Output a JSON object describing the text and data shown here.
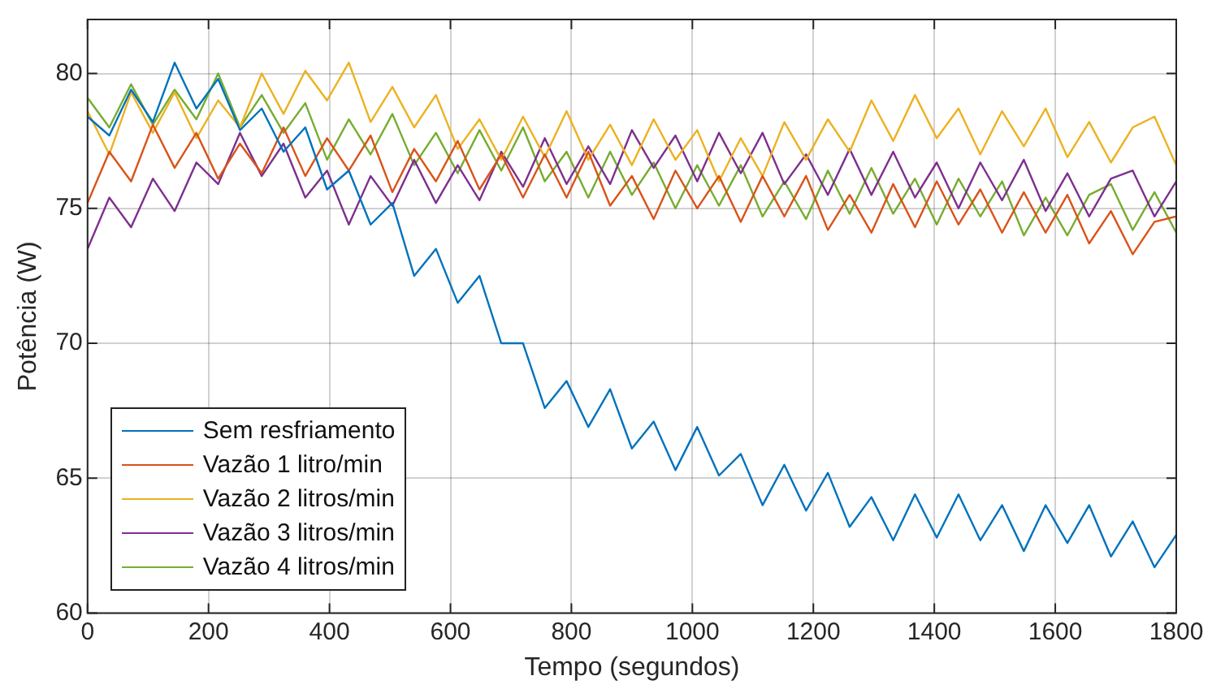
{
  "chart_data": {
    "type": "line",
    "xlabel": "Tempo (segundos)",
    "ylabel": "Potência (W)",
    "x": [
      0,
      36,
      72,
      108,
      144,
      180,
      216,
      252,
      288,
      324,
      360,
      396,
      432,
      468,
      504,
      540,
      576,
      612,
      648,
      684,
      720,
      756,
      792,
      828,
      864,
      900,
      936,
      972,
      1008,
      1044,
      1080,
      1116,
      1152,
      1188,
      1224,
      1260,
      1296,
      1332,
      1368,
      1404,
      1440,
      1476,
      1512,
      1548,
      1584,
      1620,
      1656,
      1692,
      1728,
      1764,
      1800
    ],
    "series": [
      {
        "name": "Sem resfriamento",
        "color": "#0072bd",
        "values": [
          78.4,
          77.7,
          79.4,
          78.2,
          80.4,
          78.7,
          79.8,
          77.9,
          78.7,
          77.1,
          78.0,
          75.7,
          76.4,
          74.4,
          75.2,
          72.5,
          73.5,
          71.5,
          72.5,
          70.0,
          70.0,
          67.6,
          68.6,
          66.9,
          68.3,
          66.1,
          67.1,
          65.3,
          66.9,
          65.1,
          65.9,
          64.0,
          65.5,
          63.8,
          65.2,
          63.2,
          64.3,
          62.7,
          64.4,
          62.8,
          64.4,
          62.7,
          64.0,
          62.3,
          64.0,
          62.6,
          64.0,
          62.1,
          63.4,
          61.7,
          62.9
        ]
      },
      {
        "name": "Vazão 1 litro/min",
        "color": "#d95319",
        "values": [
          75.2,
          77.1,
          76.0,
          78.1,
          76.5,
          77.8,
          76.1,
          77.4,
          76.3,
          78.0,
          76.2,
          77.6,
          76.4,
          77.7,
          75.6,
          77.2,
          76.0,
          77.5,
          75.7,
          77.0,
          75.4,
          77.0,
          75.4,
          77.1,
          75.1,
          76.2,
          74.6,
          76.4,
          75.0,
          76.2,
          74.5,
          76.2,
          74.7,
          76.2,
          74.2,
          75.5,
          74.1,
          75.9,
          74.3,
          76.0,
          74.4,
          75.7,
          74.1,
          75.6,
          74.1,
          75.5,
          73.7,
          74.9,
          73.3,
          74.5,
          74.7
        ]
      },
      {
        "name": "Vazão 2 litros/min",
        "color": "#edb120",
        "values": [
          78.6,
          77.0,
          79.3,
          77.8,
          79.3,
          77.6,
          79.0,
          78.0,
          80.0,
          78.5,
          80.1,
          79.0,
          80.4,
          78.2,
          79.5,
          78.0,
          79.2,
          77.2,
          78.3,
          76.8,
          78.4,
          76.9,
          78.6,
          76.8,
          78.1,
          76.6,
          78.3,
          76.8,
          77.9,
          76.0,
          77.6,
          76.2,
          78.2,
          76.8,
          78.3,
          77.1,
          79.0,
          77.5,
          79.2,
          77.6,
          78.7,
          77.0,
          78.6,
          77.3,
          78.7,
          76.9,
          78.2,
          76.7,
          78.0,
          78.4,
          76.6
        ]
      },
      {
        "name": "Vazão 3 litros/min",
        "color": "#7e2f8e",
        "values": [
          73.5,
          75.4,
          74.3,
          76.1,
          74.9,
          76.7,
          75.9,
          77.8,
          76.2,
          77.4,
          75.4,
          76.4,
          74.4,
          76.2,
          75.1,
          76.8,
          75.2,
          76.6,
          75.3,
          77.1,
          75.8,
          77.6,
          75.9,
          77.3,
          75.9,
          77.9,
          76.5,
          77.7,
          76.0,
          77.8,
          76.3,
          77.8,
          75.9,
          77.0,
          75.5,
          77.2,
          75.5,
          77.1,
          75.4,
          76.7,
          75.0,
          76.7,
          75.3,
          76.8,
          74.9,
          76.3,
          74.7,
          76.1,
          76.4,
          74.7,
          76.0
        ]
      },
      {
        "name": "Vazão 4 litros/min",
        "color": "#77ac30",
        "values": [
          79.1,
          78.0,
          79.6,
          78.1,
          79.4,
          78.3,
          80.0,
          78.0,
          79.2,
          77.8,
          78.9,
          76.8,
          78.3,
          77.0,
          78.5,
          76.6,
          77.8,
          76.3,
          77.9,
          76.4,
          78.0,
          76.0,
          77.1,
          75.4,
          77.1,
          75.5,
          76.7,
          75.0,
          76.6,
          75.1,
          76.6,
          74.7,
          76.0,
          74.6,
          76.4,
          74.8,
          76.5,
          74.8,
          76.1,
          74.4,
          76.1,
          74.7,
          76.0,
          74.0,
          75.4,
          74.0,
          75.5,
          75.9,
          74.2,
          75.6,
          74.1
        ]
      }
    ],
    "xlim": [
      0,
      1800
    ],
    "xticks": [
      0,
      200,
      400,
      600,
      800,
      1000,
      1200,
      1400,
      1600,
      1800
    ],
    "ylim": [
      60,
      82
    ],
    "yticks": [
      60,
      65,
      70,
      75,
      80
    ],
    "grid": true,
    "legend": "bottom left",
    "marker": "none",
    "line_style": "solid"
  }
}
